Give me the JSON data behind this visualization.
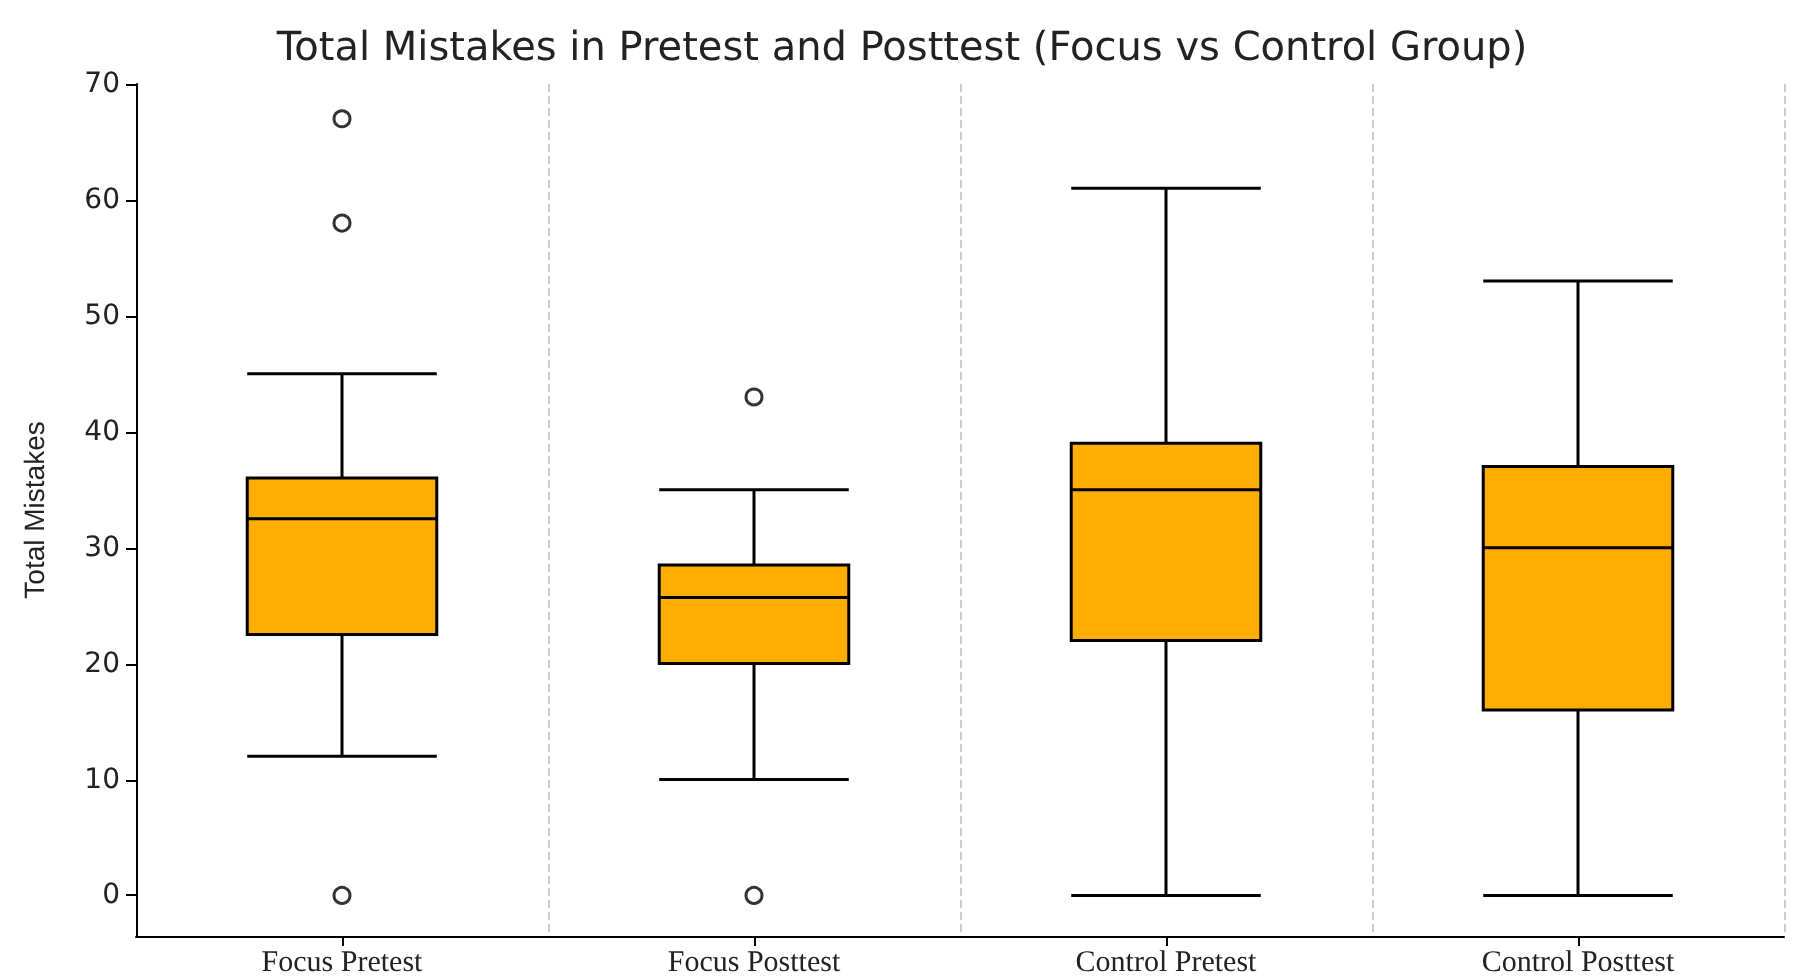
{
  "chart_data": {
    "type": "box",
    "title": "Total Mistakes in Pretest and Posttest (Focus vs Control Group)",
    "ylabel": "Total Mistakes",
    "categories": [
      "Focus Pretest",
      "Focus Posttest",
      "Control Pretest",
      "Control Posttest"
    ],
    "color": "#ffad00",
    "boxes": [
      {
        "low": 12,
        "q1": 22.5,
        "median": 32.5,
        "q3": 36,
        "high": 45,
        "outliers": [
          67,
          58,
          0
        ]
      },
      {
        "low": 10,
        "q1": 20,
        "median": 25.7,
        "q3": 28.5,
        "high": 35,
        "outliers": [
          43,
          0
        ]
      },
      {
        "low": 0,
        "q1": 22,
        "median": 35,
        "q3": 39,
        "high": 61
      },
      {
        "low": 0,
        "q1": 16,
        "median": 30,
        "q3": 37,
        "high": 53
      }
    ],
    "ylim": [
      -3.5,
      70
    ],
    "yticks": [
      0,
      10,
      20,
      30,
      40,
      50,
      60,
      70
    ],
    "grid": "x",
    "marker": "circle"
  }
}
